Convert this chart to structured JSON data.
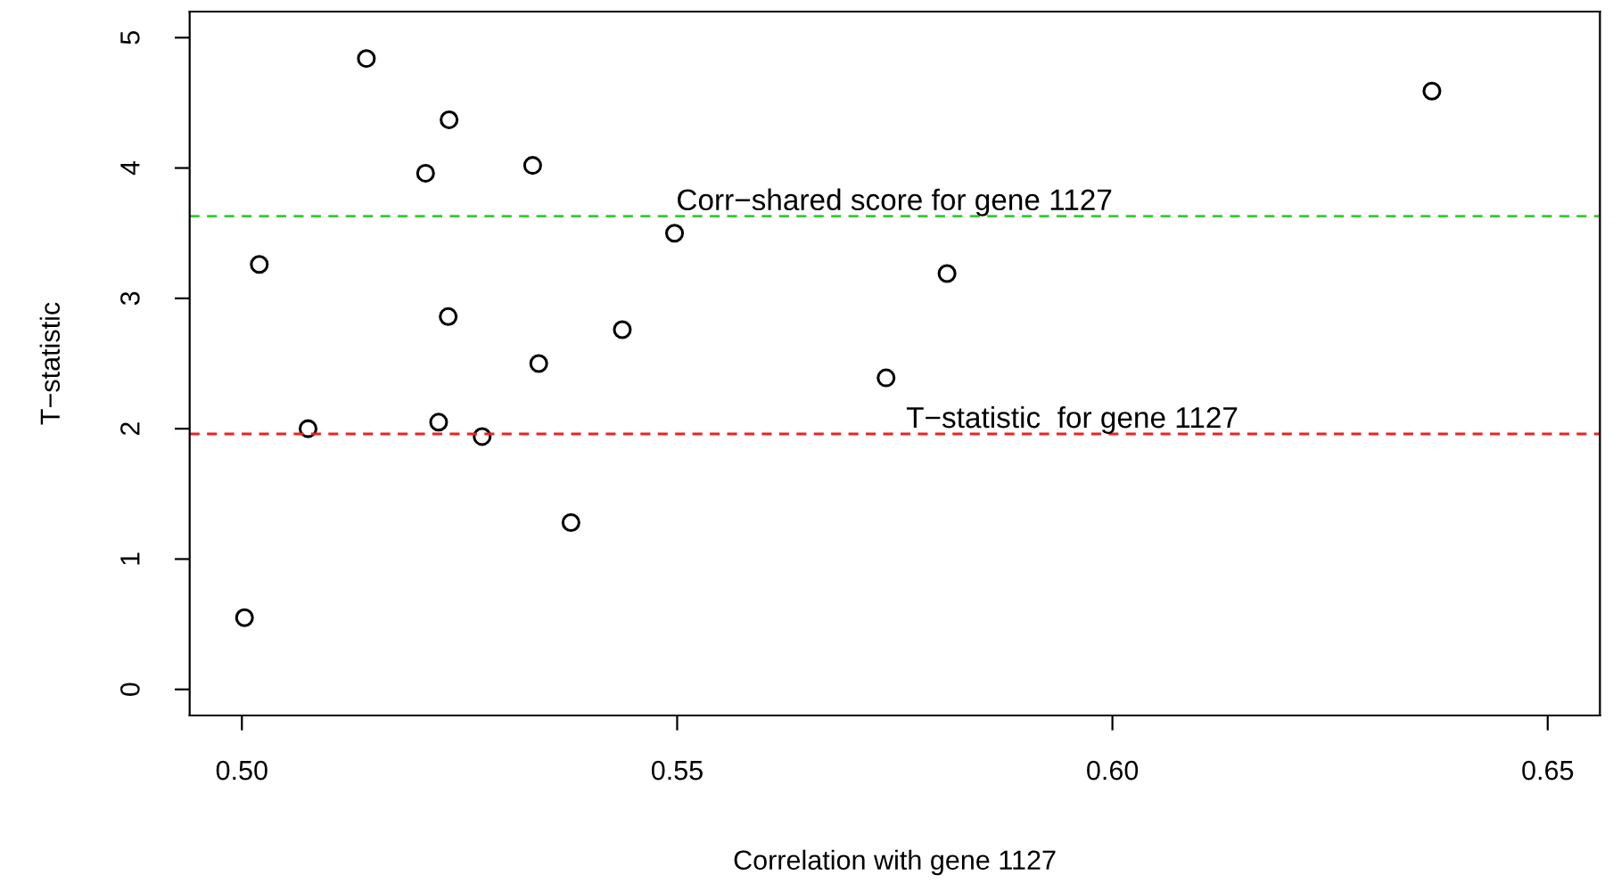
{
  "chart_data": {
    "type": "scatter",
    "xlabel": "Correlation with gene 1127",
    "ylabel": "T−statistic",
    "x": [
      0.5003,
      0.502,
      0.5076,
      0.5143,
      0.5211,
      0.5238,
      0.5237,
      0.5226,
      0.5276,
      0.5334,
      0.5341,
      0.5378,
      0.5437,
      0.5497,
      0.574,
      0.581,
      0.6367
    ],
    "series": [
      {
        "color": "#000000",
        "values": [
          0.55,
          3.26,
          2.0,
          4.84,
          3.96,
          4.37,
          2.86,
          2.05,
          1.94,
          4.02,
          2.5,
          1.28,
          2.76,
          3.5,
          2.39,
          3.19,
          4.59
        ]
      }
    ],
    "marker": "circle",
    "xlim": [
      0.494,
      0.656
    ],
    "ylim": [
      -0.2,
      5.2
    ],
    "xticks": [
      {
        "value": 0.5,
        "label": "0.50"
      },
      {
        "value": 0.55,
        "label": "0.55"
      },
      {
        "value": 0.6,
        "label": "0.60"
      },
      {
        "value": 0.65,
        "label": "0.65"
      }
    ],
    "yticks": [
      0,
      1,
      2,
      3,
      4,
      5
    ],
    "grid": false,
    "legend": false,
    "ref_lines": [
      {
        "axis": "y",
        "value": 3.63,
        "label": "Corr−shared score for gene 1127",
        "color": "#33cc33",
        "line_style": "dashed"
      },
      {
        "axis": "y",
        "value": 1.96,
        "label": "T−statistic  for gene 1127",
        "color": "#ee2222",
        "line_style": "dashed"
      }
    ]
  }
}
